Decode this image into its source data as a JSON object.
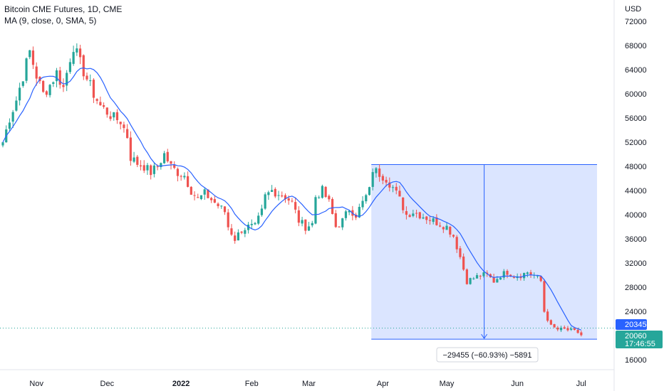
{
  "legend": {
    "title": "Bitcoin CME Futures, 1D, CME",
    "indicator": "MA (9, close, 0, SMA, 5)"
  },
  "axis": {
    "currency": "USD"
  },
  "price_tags": {
    "blue": "20345",
    "green": "20060",
    "countdown": "17:46:55"
  },
  "measure": {
    "label": "−29455 (−60.93%) −5891"
  },
  "colors": {
    "up": "#26a69a",
    "down": "#ef5350",
    "ma": "#2962ff",
    "measure_fill": "#2962ff",
    "blue_tag": "#2962ff",
    "green_tag": "#26a69a"
  },
  "chart_data": {
    "type": "candlestick",
    "ylim": [
      16000,
      74000
    ],
    "y_ticks": [
      16000,
      20000,
      24000,
      28000,
      32000,
      36000,
      40000,
      44000,
      48000,
      52000,
      56000,
      60000,
      64000,
      68000,
      72000
    ],
    "x_ticks": [
      {
        "label": "Nov",
        "index": 10
      },
      {
        "label": "Dec",
        "index": 31
      },
      {
        "label": "2022",
        "index": 53
      },
      {
        "label": "Feb",
        "index": 74
      },
      {
        "label": "Mar",
        "index": 91
      },
      {
        "label": "Apr",
        "index": 113
      },
      {
        "label": "May",
        "index": 132
      },
      {
        "label": "Jun",
        "index": 153
      },
      {
        "label": "Jul",
        "index": 172
      }
    ],
    "anchors": [
      [
        0,
        52000
      ],
      [
        2,
        56000
      ],
      [
        4,
        59000
      ],
      [
        6,
        63000
      ],
      [
        8,
        67000
      ],
      [
        10,
        63000
      ],
      [
        12,
        60000
      ],
      [
        14,
        61500
      ],
      [
        16,
        63500
      ],
      [
        18,
        61000
      ],
      [
        20,
        66000
      ],
      [
        21,
        68000
      ],
      [
        23,
        65000
      ],
      [
        25,
        62500
      ],
      [
        27,
        60000
      ],
      [
        29,
        58000
      ],
      [
        31,
        57000
      ],
      [
        33,
        56000
      ],
      [
        35,
        55500
      ],
      [
        37,
        53000
      ],
      [
        38,
        49500
      ],
      [
        40,
        48500
      ],
      [
        42,
        48000
      ],
      [
        44,
        47000
      ],
      [
        46,
        48000
      ],
      [
        48,
        50000
      ],
      [
        50,
        48000
      ],
      [
        52,
        47000
      ],
      [
        54,
        46500
      ],
      [
        56,
        44000
      ],
      [
        58,
        42500
      ],
      [
        60,
        43500
      ],
      [
        62,
        42500
      ],
      [
        64,
        41500
      ],
      [
        66,
        40500
      ],
      [
        67,
        38000
      ],
      [
        69,
        36000
      ],
      [
        71,
        37500
      ],
      [
        73,
        38000
      ],
      [
        75,
        38000
      ],
      [
        77,
        40500
      ],
      [
        78,
        43000
      ],
      [
        80,
        44000
      ],
      [
        82,
        43500
      ],
      [
        84,
        43000
      ],
      [
        86,
        42000
      ],
      [
        88,
        39000
      ],
      [
        90,
        38000
      ],
      [
        92,
        38500
      ],
      [
        93,
        43000
      ],
      [
        95,
        44000
      ],
      [
        97,
        42000
      ],
      [
        99,
        38000
      ],
      [
        101,
        39000
      ],
      [
        103,
        41000
      ],
      [
        105,
        40000
      ],
      [
        107,
        42000
      ],
      [
        109,
        44000
      ],
      [
        110,
        47500
      ],
      [
        112,
        46800
      ],
      [
        114,
        46000
      ],
      [
        116,
        44500
      ],
      [
        118,
        42500
      ],
      [
        120,
        40000
      ],
      [
        122,
        40500
      ],
      [
        124,
        40000
      ],
      [
        126,
        39500
      ],
      [
        128,
        39000
      ],
      [
        130,
        38500
      ],
      [
        132,
        38000
      ],
      [
        134,
        36500
      ],
      [
        136,
        33000
      ],
      [
        138,
        29000
      ],
      [
        140,
        29500
      ],
      [
        142,
        30000
      ],
      [
        144,
        30000
      ],
      [
        146,
        29000
      ],
      [
        148,
        30000
      ],
      [
        150,
        30500
      ],
      [
        152,
        30000
      ],
      [
        154,
        30000
      ],
      [
        156,
        30500
      ],
      [
        158,
        30000
      ],
      [
        160,
        29000
      ],
      [
        161,
        24000
      ],
      [
        163,
        21500
      ],
      [
        165,
        21000
      ],
      [
        167,
        21000
      ],
      [
        169,
        20800
      ],
      [
        171,
        20500
      ],
      [
        172,
        20100
      ]
    ],
    "last_price": 20060,
    "measure_range": {
      "from_index": 110,
      "to_index": 172,
      "high": 48300,
      "low": 19400
    }
  }
}
